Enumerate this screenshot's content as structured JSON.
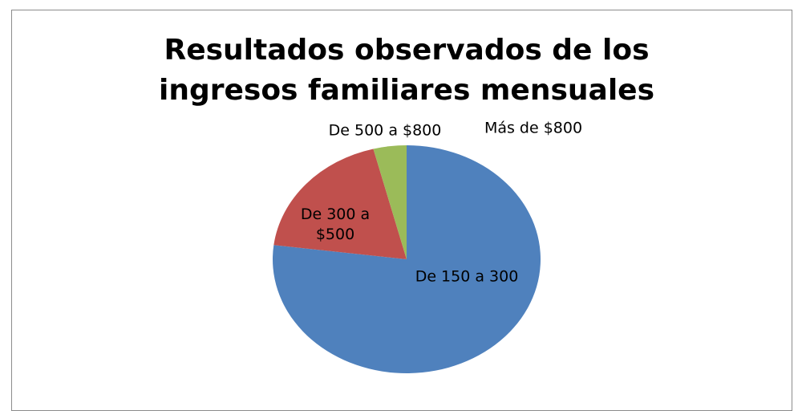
{
  "chart_data": {
    "type": "pie",
    "title": "Resultados observados de los ingresos familiares mensuales",
    "categories": [
      "De 150 a 300",
      "De 300 a $500",
      "De 500 a $800",
      "Más de $800"
    ],
    "values": [
      77,
      19,
      4,
      0
    ],
    "colors": [
      "#4f81bd",
      "#c0504d",
      "#9bbb59",
      "#8064a2"
    ]
  }
}
